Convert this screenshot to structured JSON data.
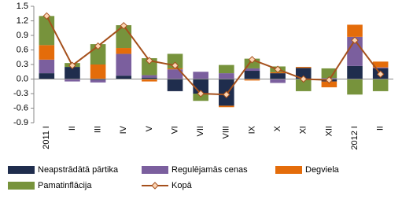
{
  "chart_data": {
    "type": "bar",
    "stacked": true,
    "categories": [
      "2011 I",
      "II",
      "III",
      "IV",
      "V",
      "VI",
      "VII",
      "VIII",
      "IX",
      "X",
      "XI",
      "XII",
      "2012 I",
      "II"
    ],
    "series": [
      {
        "name": "Neapstrādātā pārtika",
        "color": "#1f2d4d",
        "values": [
          0.12,
          0.25,
          -0.02,
          0.07,
          0.03,
          -0.25,
          -0.3,
          -0.55,
          0.17,
          0.12,
          0.23,
          -0.05,
          0.27,
          0.22
        ]
      },
      {
        "name": "Regulējamās cenas",
        "color": "#7b5f9e",
        "values": [
          0.28,
          -0.05,
          -0.05,
          0.45,
          0.05,
          0.2,
          0.15,
          0.12,
          0.05,
          -0.08,
          0,
          0.02,
          0.6,
          0.02
        ]
      },
      {
        "name": "Degviela",
        "color": "#e46c0a",
        "values": [
          0.3,
          0,
          0.3,
          0.12,
          -0.05,
          0.02,
          0,
          -0.03,
          -0.03,
          0.02,
          0.02,
          -0.12,
          0.25,
          0.12
        ]
      },
      {
        "name": "Pamatinflācija",
        "color": "#77933c",
        "values": [
          0.6,
          0.08,
          0.42,
          0.47,
          0.35,
          0.3,
          -0.15,
          0.17,
          0.2,
          0.12,
          -0.25,
          0.2,
          -0.32,
          -0.25
        ]
      },
      {
        "name": "Kopā",
        "color": "#a5501c",
        "chart_type": "line",
        "marker_color": "#fcd5b4",
        "values": [
          1.3,
          0.28,
          0.68,
          1.1,
          0.38,
          0.28,
          -0.3,
          -0.32,
          0.4,
          0.2,
          0,
          -0.02,
          0.8,
          0.1
        ]
      }
    ],
    "ylim": [
      -0.9,
      1.5
    ],
    "yticks": [
      -0.9,
      -0.6,
      -0.3,
      {
        "value": 0,
        "label": "0.0"
      },
      0.3,
      0.6,
      0.9,
      1.2,
      1.5
    ],
    "grid": false
  }
}
